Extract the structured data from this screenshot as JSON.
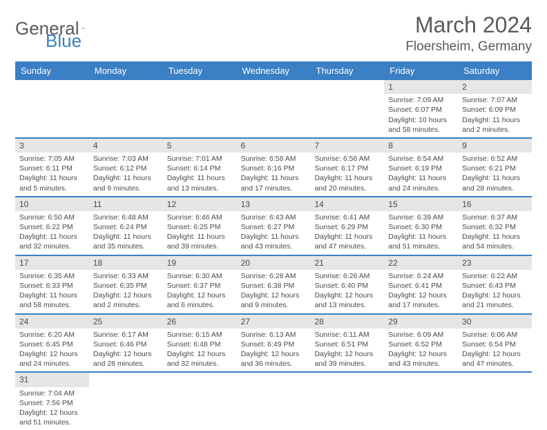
{
  "logo": {
    "text1": "General",
    "text2": "Blue"
  },
  "title": {
    "month": "March 2024",
    "location": "Floersheim, Germany"
  },
  "colors": {
    "header_bg": "#3b7fc4",
    "header_text": "#ffffff",
    "daynum_bg": "#e6e6e6",
    "text": "#4a4a4a",
    "rule": "#3b7fc4",
    "page_bg": "#ffffff"
  },
  "daynames": [
    "Sunday",
    "Monday",
    "Tuesday",
    "Wednesday",
    "Thursday",
    "Friday",
    "Saturday"
  ],
  "weeks": [
    [
      {
        "n": "",
        "l": [
          "",
          "",
          ""
        ]
      },
      {
        "n": "",
        "l": [
          "",
          "",
          ""
        ]
      },
      {
        "n": "",
        "l": [
          "",
          "",
          ""
        ]
      },
      {
        "n": "",
        "l": [
          "",
          "",
          ""
        ]
      },
      {
        "n": "",
        "l": [
          "",
          "",
          ""
        ]
      },
      {
        "n": "1",
        "l": [
          "Sunrise: 7:09 AM",
          "Sunset: 6:07 PM",
          "Daylight: 10 hours and 58 minutes."
        ]
      },
      {
        "n": "2",
        "l": [
          "Sunrise: 7:07 AM",
          "Sunset: 6:09 PM",
          "Daylight: 11 hours and 2 minutes."
        ]
      }
    ],
    [
      {
        "n": "3",
        "l": [
          "Sunrise: 7:05 AM",
          "Sunset: 6:11 PM",
          "Daylight: 11 hours and 5 minutes."
        ]
      },
      {
        "n": "4",
        "l": [
          "Sunrise: 7:03 AM",
          "Sunset: 6:12 PM",
          "Daylight: 11 hours and 9 minutes."
        ]
      },
      {
        "n": "5",
        "l": [
          "Sunrise: 7:01 AM",
          "Sunset: 6:14 PM",
          "Daylight: 11 hours and 13 minutes."
        ]
      },
      {
        "n": "6",
        "l": [
          "Sunrise: 6:58 AM",
          "Sunset: 6:16 PM",
          "Daylight: 11 hours and 17 minutes."
        ]
      },
      {
        "n": "7",
        "l": [
          "Sunrise: 6:56 AM",
          "Sunset: 6:17 PM",
          "Daylight: 11 hours and 20 minutes."
        ]
      },
      {
        "n": "8",
        "l": [
          "Sunrise: 6:54 AM",
          "Sunset: 6:19 PM",
          "Daylight: 11 hours and 24 minutes."
        ]
      },
      {
        "n": "9",
        "l": [
          "Sunrise: 6:52 AM",
          "Sunset: 6:21 PM",
          "Daylight: 11 hours and 28 minutes."
        ]
      }
    ],
    [
      {
        "n": "10",
        "l": [
          "Sunrise: 6:50 AM",
          "Sunset: 6:22 PM",
          "Daylight: 11 hours and 32 minutes."
        ]
      },
      {
        "n": "11",
        "l": [
          "Sunrise: 6:48 AM",
          "Sunset: 6:24 PM",
          "Daylight: 11 hours and 35 minutes."
        ]
      },
      {
        "n": "12",
        "l": [
          "Sunrise: 6:46 AM",
          "Sunset: 6:25 PM",
          "Daylight: 11 hours and 39 minutes."
        ]
      },
      {
        "n": "13",
        "l": [
          "Sunrise: 6:43 AM",
          "Sunset: 6:27 PM",
          "Daylight: 11 hours and 43 minutes."
        ]
      },
      {
        "n": "14",
        "l": [
          "Sunrise: 6:41 AM",
          "Sunset: 6:29 PM",
          "Daylight: 11 hours and 47 minutes."
        ]
      },
      {
        "n": "15",
        "l": [
          "Sunrise: 6:39 AM",
          "Sunset: 6:30 PM",
          "Daylight: 11 hours and 51 minutes."
        ]
      },
      {
        "n": "16",
        "l": [
          "Sunrise: 6:37 AM",
          "Sunset: 6:32 PM",
          "Daylight: 11 hours and 54 minutes."
        ]
      }
    ],
    [
      {
        "n": "17",
        "l": [
          "Sunrise: 6:35 AM",
          "Sunset: 6:33 PM",
          "Daylight: 11 hours and 58 minutes."
        ]
      },
      {
        "n": "18",
        "l": [
          "Sunrise: 6:33 AM",
          "Sunset: 6:35 PM",
          "Daylight: 12 hours and 2 minutes."
        ]
      },
      {
        "n": "19",
        "l": [
          "Sunrise: 6:30 AM",
          "Sunset: 6:37 PM",
          "Daylight: 12 hours and 6 minutes."
        ]
      },
      {
        "n": "20",
        "l": [
          "Sunrise: 6:28 AM",
          "Sunset: 6:38 PM",
          "Daylight: 12 hours and 9 minutes."
        ]
      },
      {
        "n": "21",
        "l": [
          "Sunrise: 6:26 AM",
          "Sunset: 6:40 PM",
          "Daylight: 12 hours and 13 minutes."
        ]
      },
      {
        "n": "22",
        "l": [
          "Sunrise: 6:24 AM",
          "Sunset: 6:41 PM",
          "Daylight: 12 hours and 17 minutes."
        ]
      },
      {
        "n": "23",
        "l": [
          "Sunrise: 6:22 AM",
          "Sunset: 6:43 PM",
          "Daylight: 12 hours and 21 minutes."
        ]
      }
    ],
    [
      {
        "n": "24",
        "l": [
          "Sunrise: 6:20 AM",
          "Sunset: 6:45 PM",
          "Daylight: 12 hours and 24 minutes."
        ]
      },
      {
        "n": "25",
        "l": [
          "Sunrise: 6:17 AM",
          "Sunset: 6:46 PM",
          "Daylight: 12 hours and 28 minutes."
        ]
      },
      {
        "n": "26",
        "l": [
          "Sunrise: 6:15 AM",
          "Sunset: 6:48 PM",
          "Daylight: 12 hours and 32 minutes."
        ]
      },
      {
        "n": "27",
        "l": [
          "Sunrise: 6:13 AM",
          "Sunset: 6:49 PM",
          "Daylight: 12 hours and 36 minutes."
        ]
      },
      {
        "n": "28",
        "l": [
          "Sunrise: 6:11 AM",
          "Sunset: 6:51 PM",
          "Daylight: 12 hours and 39 minutes."
        ]
      },
      {
        "n": "29",
        "l": [
          "Sunrise: 6:09 AM",
          "Sunset: 6:52 PM",
          "Daylight: 12 hours and 43 minutes."
        ]
      },
      {
        "n": "30",
        "l": [
          "Sunrise: 6:06 AM",
          "Sunset: 6:54 PM",
          "Daylight: 12 hours and 47 minutes."
        ]
      }
    ],
    [
      {
        "n": "31",
        "l": [
          "Sunrise: 7:04 AM",
          "Sunset: 7:56 PM",
          "Daylight: 12 hours and 51 minutes."
        ]
      },
      {
        "n": "",
        "l": [
          "",
          "",
          ""
        ]
      },
      {
        "n": "",
        "l": [
          "",
          "",
          ""
        ]
      },
      {
        "n": "",
        "l": [
          "",
          "",
          ""
        ]
      },
      {
        "n": "",
        "l": [
          "",
          "",
          ""
        ]
      },
      {
        "n": "",
        "l": [
          "",
          "",
          ""
        ]
      },
      {
        "n": "",
        "l": [
          "",
          "",
          ""
        ]
      }
    ]
  ]
}
